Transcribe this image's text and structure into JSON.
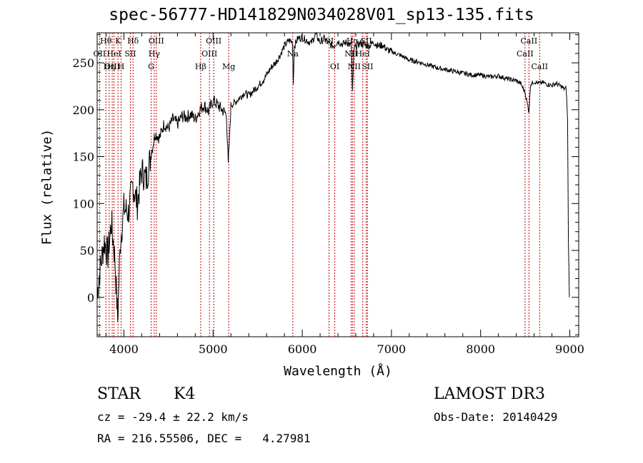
{
  "chart_data": {
    "type": "line",
    "title": "spec-56777-HD141829N034028V01_sp13-135.fits",
    "xlabel": "Wavelength (Å)",
    "ylabel": "Flux (relative)",
    "xlim": [
      3700,
      9100
    ],
    "ylim": [
      -42,
      282
    ],
    "x_ticks": [
      4000,
      5000,
      6000,
      7000,
      8000,
      9000
    ],
    "y_ticks": [
      0,
      50,
      100,
      150,
      200,
      250
    ],
    "grid": false,
    "series": [
      {
        "x": [
          3700,
          3740,
          3780,
          3820,
          3860,
          3900,
          3930,
          3960,
          4000,
          4050,
          4100,
          4150,
          4200,
          4250,
          4300,
          4350,
          4400,
          4450,
          4500,
          4550,
          4600,
          4650,
          4700,
          4750,
          4800,
          4850,
          4900,
          4950,
          5000,
          5050,
          5100,
          5150,
          5170,
          5200,
          5250,
          5300,
          5350,
          5400,
          5450,
          5500,
          5550,
          5600,
          5650,
          5700,
          5750,
          5800,
          5850,
          5890,
          5900,
          5910,
          5950,
          6000,
          6050,
          6100,
          6150,
          6200,
          6250,
          6300,
          6350,
          6400,
          6450,
          6500,
          6550,
          6563,
          6580,
          6600,
          6650,
          6700,
          6750,
          6800,
          6850,
          6900,
          6950,
          7000,
          7100,
          7200,
          7300,
          7400,
          7500,
          7600,
          7700,
          7800,
          7900,
          8000,
          8100,
          8200,
          8300,
          8400,
          8450,
          8500,
          8542,
          8560,
          8600,
          8662,
          8700,
          8750,
          8800,
          8850,
          8900,
          8940,
          8960,
          8975,
          8985,
          8995
        ],
        "y": [
          5,
          35,
          60,
          45,
          80,
          40,
          -25,
          60,
          95,
          90,
          120,
          100,
          135,
          125,
          150,
          175,
          170,
          185,
          180,
          190,
          185,
          193,
          192,
          195,
          190,
          200,
          205,
          198,
          210,
          205,
          200,
          195,
          140,
          205,
          208,
          213,
          218,
          215,
          220,
          225,
          230,
          237,
          245,
          250,
          258,
          268,
          274,
          272,
          228,
          268,
          276,
          277,
          274,
          271,
          280,
          272,
          276,
          270,
          268,
          273,
          270,
          272,
          268,
          218,
          265,
          267,
          271,
          269,
          268,
          272,
          268,
          269,
          264,
          262,
          258,
          253,
          251,
          248,
          245,
          243,
          241,
          239,
          237,
          237,
          235,
          236,
          233,
          231,
          228,
          218,
          198,
          227,
          230,
          228,
          229,
          227,
          226,
          228,
          225,
          222,
          223,
          190,
          60,
          0
        ]
      }
    ],
    "line_markers": [
      {
        "wl": 3727,
        "label": "OII",
        "row": 2
      },
      {
        "wl": 3798,
        "label": "Hθ",
        "row": 1
      },
      {
        "wl": 3835,
        "label": "Hη",
        "row": 3
      },
      {
        "wl": 3869,
        "label": "OIII",
        "row": 3
      },
      {
        "wl": 3889,
        "label": "HeI",
        "row": 2
      },
      {
        "wl": 3934,
        "label": "K",
        "row": 1
      },
      {
        "wl": 3968,
        "label": "H",
        "row": 3
      },
      {
        "wl": 4072,
        "label": "SII",
        "row": 2
      },
      {
        "wl": 4102,
        "label": "Hδ",
        "row": 1
      },
      {
        "wl": 4305,
        "label": "G",
        "row": 3
      },
      {
        "wl": 4340,
        "label": "Hγ",
        "row": 2
      },
      {
        "wl": 4363,
        "label": "OIII",
        "row": 1
      },
      {
        "wl": 4861,
        "label": "Hβ",
        "row": 3
      },
      {
        "wl": 4959,
        "label": "OIII",
        "row": 2
      },
      {
        "wl": 5007,
        "label": "OIII",
        "row": 1
      },
      {
        "wl": 5175,
        "label": "Mg",
        "row": 3
      },
      {
        "wl": 5894,
        "label": "Na",
        "row": 2
      },
      {
        "wl": 6300,
        "label": "OI",
        "row": 1
      },
      {
        "wl": 6364,
        "label": "OI",
        "row": 3
      },
      {
        "wl": 6548,
        "label": "NII",
        "row": 2
      },
      {
        "wl": 6563,
        "label": "Hα",
        "row": 1
      },
      {
        "wl": 6583,
        "label": "NII",
        "row": 3
      },
      {
        "wl": 6678,
        "label": "HeI",
        "row": 2
      },
      {
        "wl": 6717,
        "label": "SII",
        "row": 1
      },
      {
        "wl": 6731,
        "label": "SII",
        "row": 3
      },
      {
        "wl": 8498,
        "label": "CaII",
        "row": 2
      },
      {
        "wl": 8542,
        "label": "CaII",
        "row": 1
      },
      {
        "wl": 8662,
        "label": "CaII",
        "row": 3
      }
    ]
  },
  "info": {
    "class_label": "STAR",
    "subclass": "K4",
    "survey": "LAMOST DR3",
    "cz_text": "cz = -29.4 ± 22.2 km/s",
    "obs_date": "Obs-Date: 20140429",
    "radec": "RA = 216.55506, DEC =   4.27981"
  },
  "colors": {
    "spectrum": "#000000",
    "marker_line": "#c00000",
    "background": "#ffffff"
  }
}
